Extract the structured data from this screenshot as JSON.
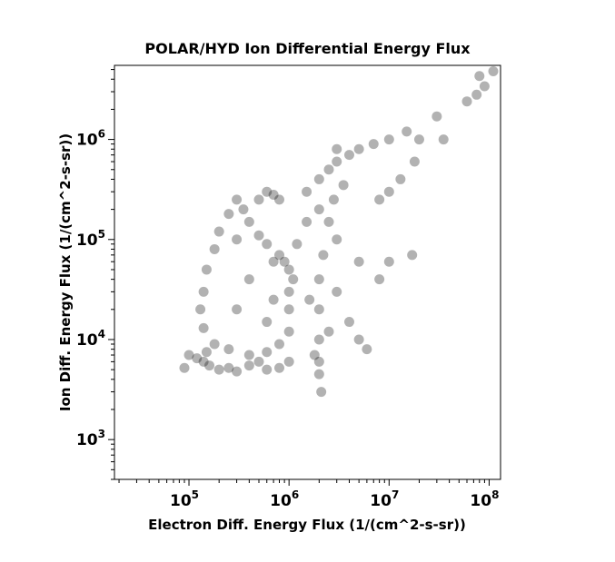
{
  "chart_data": {
    "type": "scatter",
    "title": "POLAR/HYD  Ion Differential Energy Flux",
    "xlabel": "Electron Diff. Energy Flux (1/(cm^2-s-sr))",
    "ylabel": "Ion Diff. Energy Flux (1/(cm^2-s-sr))",
    "xscale": "log",
    "yscale": "log",
    "xlim": [
      18000,
      130000000
    ],
    "ylim": [
      400,
      5500000
    ],
    "xticks": [
      {
        "base": "10",
        "exp": "5",
        "value": 100000
      },
      {
        "base": "10",
        "exp": "6",
        "value": 1000000
      },
      {
        "base": "10",
        "exp": "7",
        "value": 10000000
      },
      {
        "base": "10",
        "exp": "8",
        "value": 100000000
      }
    ],
    "yticks": [
      {
        "base": "10",
        "exp": "3",
        "value": 1000
      },
      {
        "base": "10",
        "exp": "4",
        "value": 10000
      },
      {
        "base": "10",
        "exp": "5",
        "value": 100000
      },
      {
        "base": "10",
        "exp": "6",
        "value": 1000000
      }
    ],
    "grid": false,
    "marker_color": "#000000",
    "marker_opacity": 0.3,
    "series": [
      {
        "points": [
          [
            90000,
            5200
          ],
          [
            100000,
            7000
          ],
          [
            120000,
            6500
          ],
          [
            140000,
            6000
          ],
          [
            160000,
            5500
          ],
          [
            200000,
            5000
          ],
          [
            250000,
            5200
          ],
          [
            300000,
            4800
          ],
          [
            400000,
            5500
          ],
          [
            500000,
            6000
          ],
          [
            600000,
            5000
          ],
          [
            800000,
            5200
          ],
          [
            1000000,
            6000
          ],
          [
            150000,
            7500
          ],
          [
            180000,
            9000
          ],
          [
            250000,
            8000
          ],
          [
            400000,
            7000
          ],
          [
            600000,
            7500
          ],
          [
            800000,
            9000
          ],
          [
            1000000,
            12000
          ],
          [
            1000000,
            20000
          ],
          [
            1000000,
            30000
          ],
          [
            1100000,
            40000
          ],
          [
            1000000,
            50000
          ],
          [
            900000,
            60000
          ],
          [
            800000,
            70000
          ],
          [
            600000,
            90000
          ],
          [
            500000,
            110000
          ],
          [
            400000,
            150000
          ],
          [
            350000,
            200000
          ],
          [
            300000,
            250000
          ],
          [
            250000,
            180000
          ],
          [
            200000,
            120000
          ],
          [
            180000,
            80000
          ],
          [
            150000,
            50000
          ],
          [
            140000,
            30000
          ],
          [
            130000,
            20000
          ],
          [
            140000,
            13000
          ],
          [
            500000,
            250000
          ],
          [
            600000,
            300000
          ],
          [
            700000,
            280000
          ],
          [
            800000,
            250000
          ],
          [
            1500000,
            300000
          ],
          [
            2000000,
            400000
          ],
          [
            2500000,
            500000
          ],
          [
            3000000,
            600000
          ],
          [
            4000000,
            700000
          ],
          [
            5000000,
            800000
          ],
          [
            7000000,
            900000
          ],
          [
            10000000,
            1000000
          ],
          [
            15000000,
            1200000
          ],
          [
            20000000,
            1000000
          ],
          [
            2000000,
            200000
          ],
          [
            2500000,
            150000
          ],
          [
            3000000,
            100000
          ],
          [
            2200000,
            70000
          ],
          [
            2000000,
            40000
          ],
          [
            2000000,
            20000
          ],
          [
            2000000,
            10000
          ],
          [
            2000000,
            6000
          ],
          [
            2000000,
            4500
          ],
          [
            2100000,
            3000
          ],
          [
            3000000,
            30000
          ],
          [
            4000000,
            15000
          ],
          [
            5000000,
            10000
          ],
          [
            6000000,
            8000
          ],
          [
            5000000,
            60000
          ],
          [
            8000000,
            40000
          ],
          [
            10000000,
            60000
          ],
          [
            17000000,
            70000
          ],
          [
            8000000,
            250000
          ],
          [
            10000000,
            300000
          ],
          [
            13000000,
            400000
          ],
          [
            18000000,
            600000
          ],
          [
            30000000,
            1700000
          ],
          [
            35000000,
            1000000
          ],
          [
            60000000,
            2400000
          ],
          [
            75000000,
            2800000
          ],
          [
            80000000,
            4300000
          ],
          [
            90000000,
            3400000
          ],
          [
            110000000,
            4800000
          ],
          [
            3000000,
            800000
          ],
          [
            2800000,
            250000
          ],
          [
            3500000,
            350000
          ],
          [
            1500000,
            150000
          ],
          [
            1200000,
            90000
          ],
          [
            700000,
            60000
          ],
          [
            400000,
            40000
          ],
          [
            300000,
            20000
          ],
          [
            600000,
            15000
          ],
          [
            700000,
            25000
          ],
          [
            300000,
            100000
          ],
          [
            1600000,
            25000
          ],
          [
            1800000,
            7000
          ],
          [
            2500000,
            12000
          ]
        ]
      }
    ]
  }
}
